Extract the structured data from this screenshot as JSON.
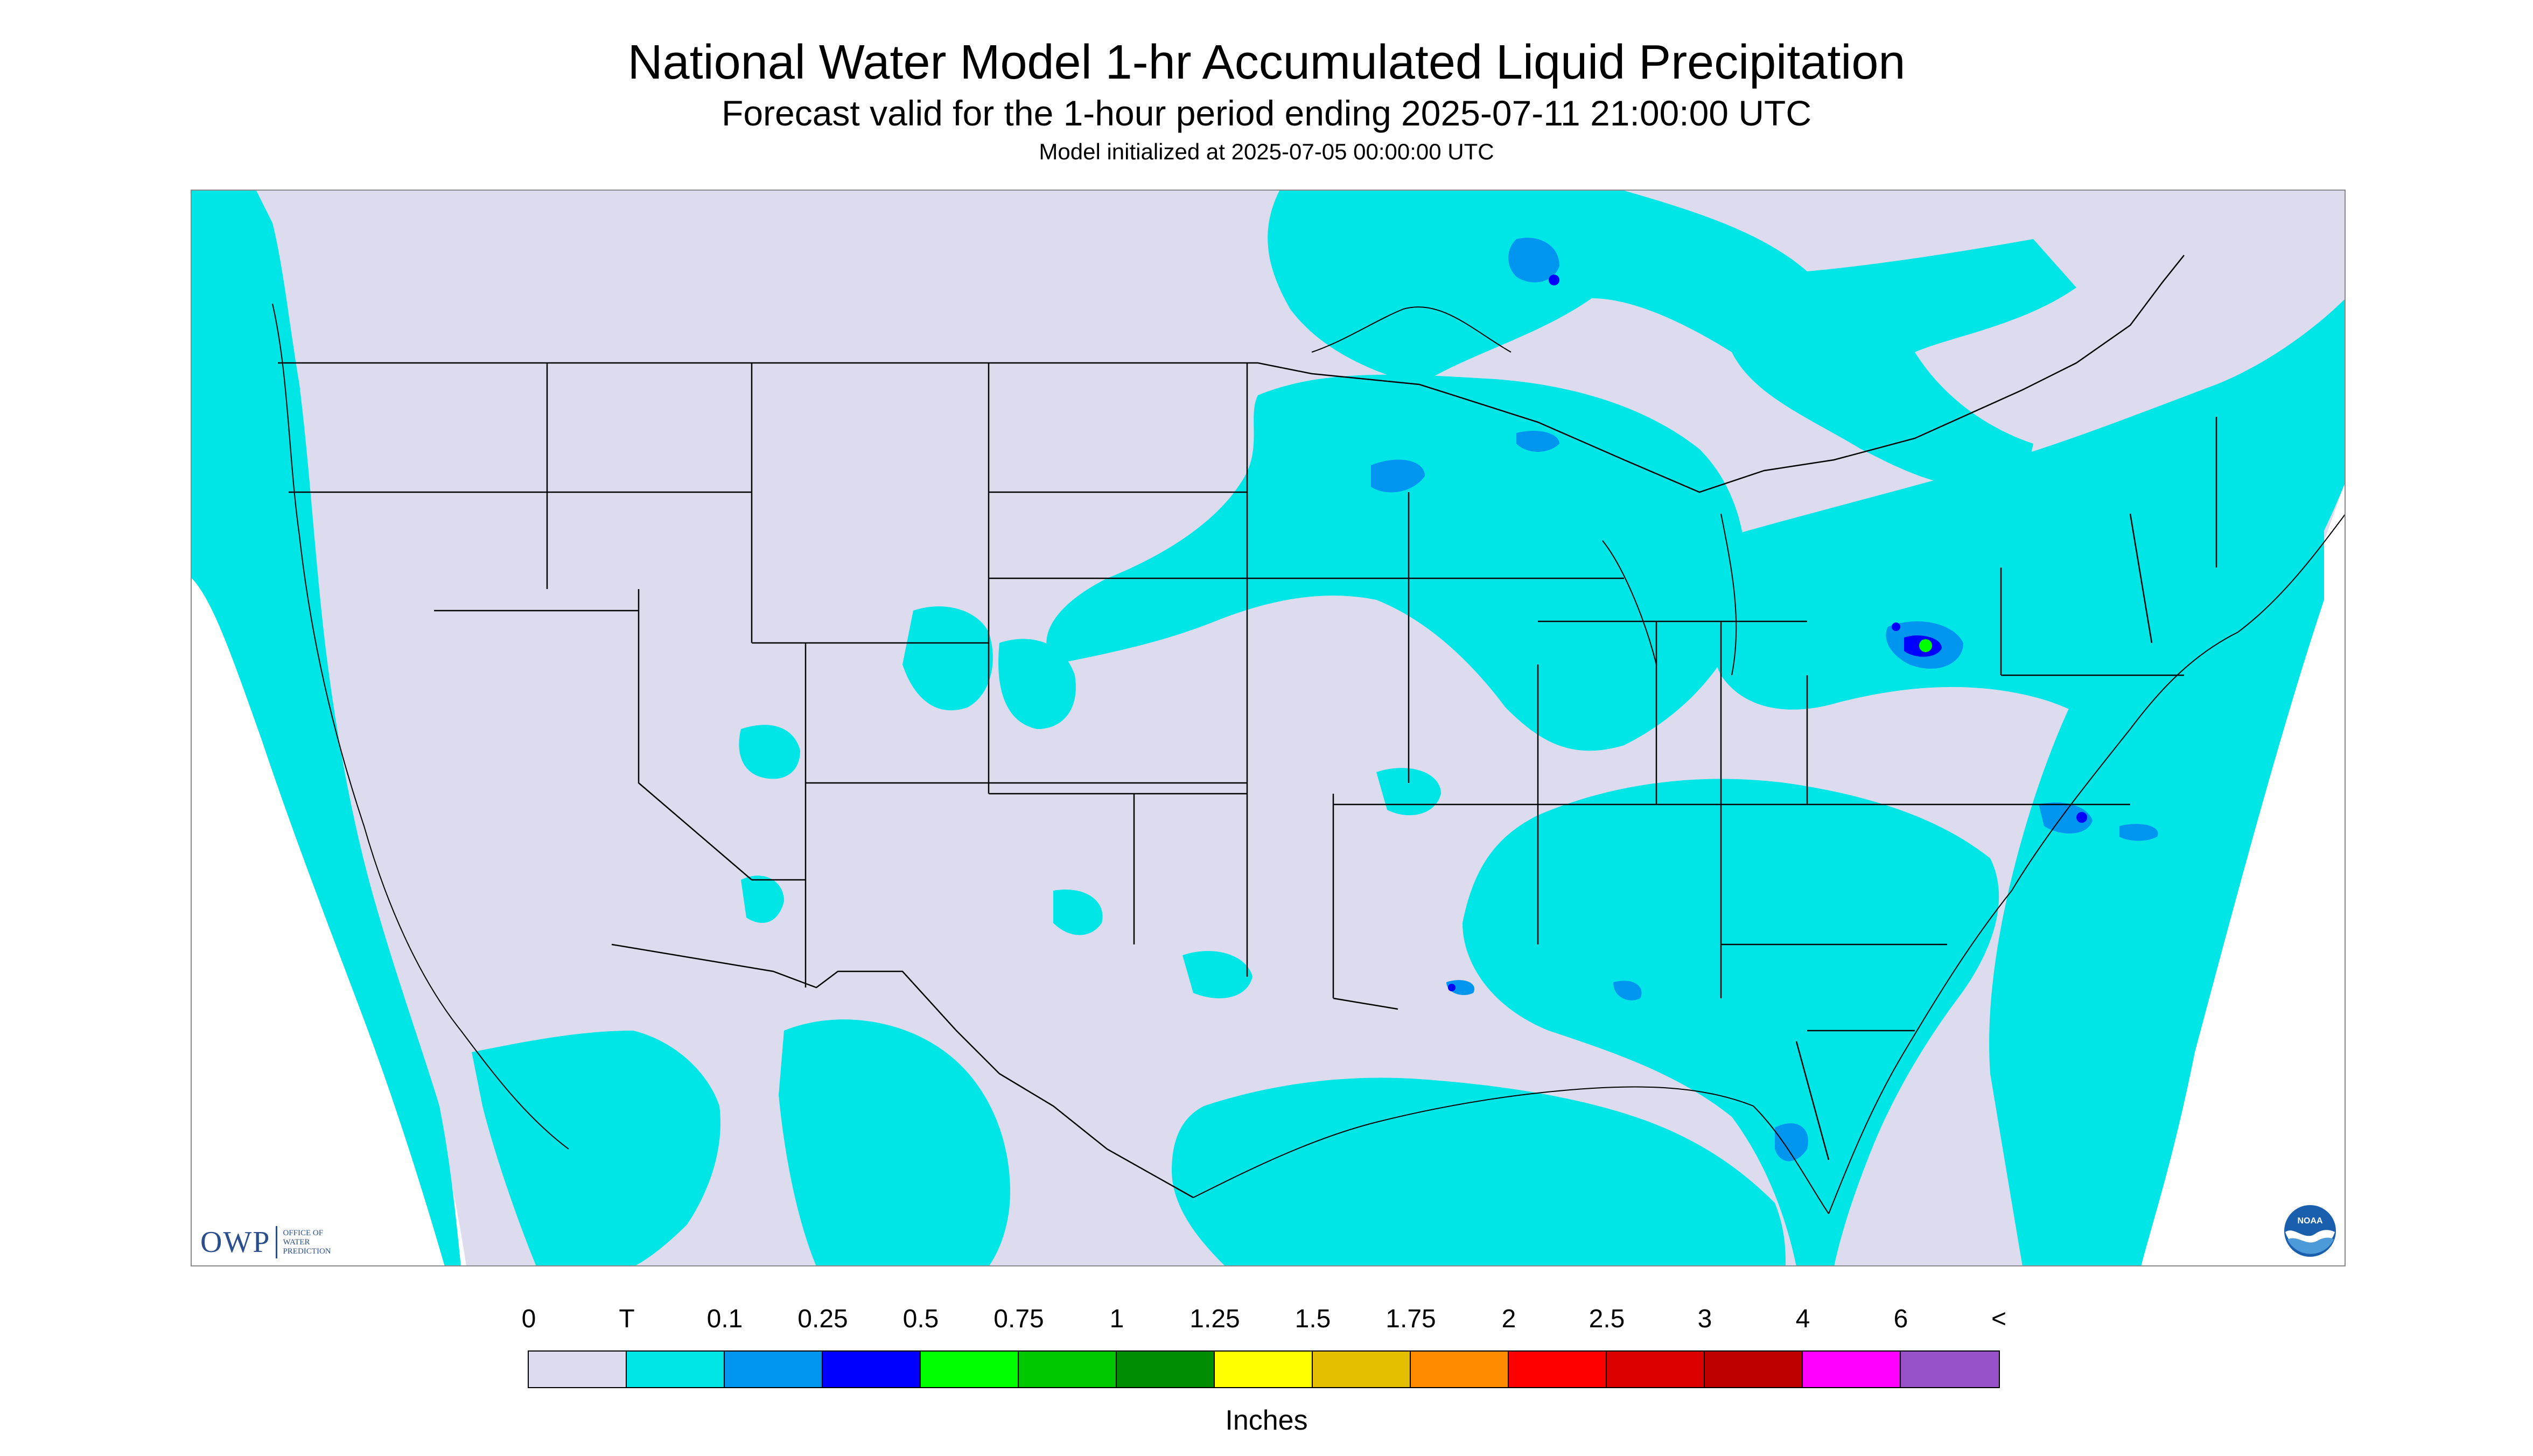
{
  "title": "National Water Model 1-hr Accumulated Liquid Precipitation",
  "subtitle": "Forecast valid for the 1-hour period ending 2025-07-11 21:00:00 UTC",
  "model_init": "Model initialized at 2025-07-05 00:00:00 UTC",
  "logos": {
    "owp": {
      "text": "OWP",
      "sub1": "OFFICE OF",
      "sub2": "WATER",
      "sub3": "PREDICTION"
    },
    "noaa": {
      "text": "NOAA"
    }
  },
  "legend": {
    "labels": [
      "0",
      "T",
      "0.1",
      "0.25",
      "0.5",
      "0.75",
      "1",
      "1.25",
      "1.5",
      "1.75",
      "2",
      "2.5",
      "3",
      "4",
      "6",
      "<"
    ],
    "colors": [
      "#dcdcee",
      "#00e5e5",
      "#0096f0",
      "#0000ff",
      "#00ff00",
      "#00c800",
      "#008c00",
      "#ffff00",
      "#e6be00",
      "#ff8c00",
      "#ff0000",
      "#dc0000",
      "#be0000",
      "#ff00ff",
      "#9650c8"
    ],
    "units": "Inches"
  },
  "map": {
    "background_color": "#dcdcee",
    "outside_color": "#ffffff",
    "border_color": "#000000",
    "precip_colors": {
      "trace": "#00e5e5",
      "light": "#0096f0",
      "moderate": "#0000ff",
      "heavy": "#00ff00"
    }
  }
}
